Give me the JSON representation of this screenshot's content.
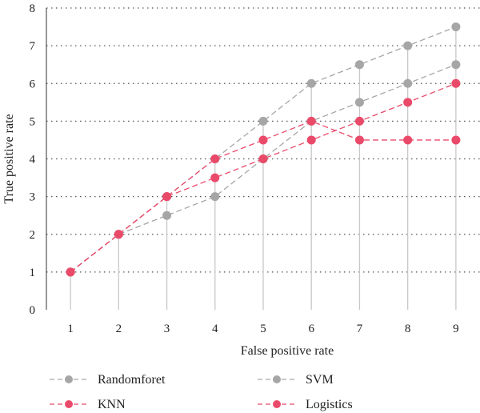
{
  "chart_data": {
    "type": "line",
    "xlabel": "False positive rate",
    "ylabel": "True positive rate",
    "x": [
      1,
      2,
      3,
      4,
      5,
      6,
      7,
      8,
      9
    ],
    "xlim": [
      0.5,
      9.5
    ],
    "ylim": [
      0,
      8
    ],
    "xticks": [
      "1",
      "2",
      "3",
      "4",
      "5",
      "6",
      "7",
      "8",
      "9"
    ],
    "yticks": [
      "0",
      "1",
      "2",
      "3",
      "4",
      "5",
      "6",
      "7",
      "8"
    ],
    "grid": "horizontal dotted",
    "legend_position": "bottom",
    "series": [
      {
        "name": "Randomforet",
        "color": "#a6a6a6",
        "values": [
          1,
          2,
          2.5,
          3,
          4,
          5,
          5.5,
          6,
          6.5
        ]
      },
      {
        "name": "SVM",
        "color": "#a6a6a6",
        "values": [
          1,
          2,
          3,
          4,
          5,
          6,
          6.5,
          7,
          7.5
        ]
      },
      {
        "name": "KNN",
        "color": "#ea4a6a",
        "values": [
          1,
          2,
          3,
          4,
          4.5,
          5,
          4.5,
          4.5,
          4.5
        ]
      },
      {
        "name": "Logistics",
        "color": "#ea4a6a",
        "values": [
          1,
          2,
          3,
          3.5,
          4,
          4.5,
          5,
          5.5,
          6
        ]
      }
    ]
  }
}
